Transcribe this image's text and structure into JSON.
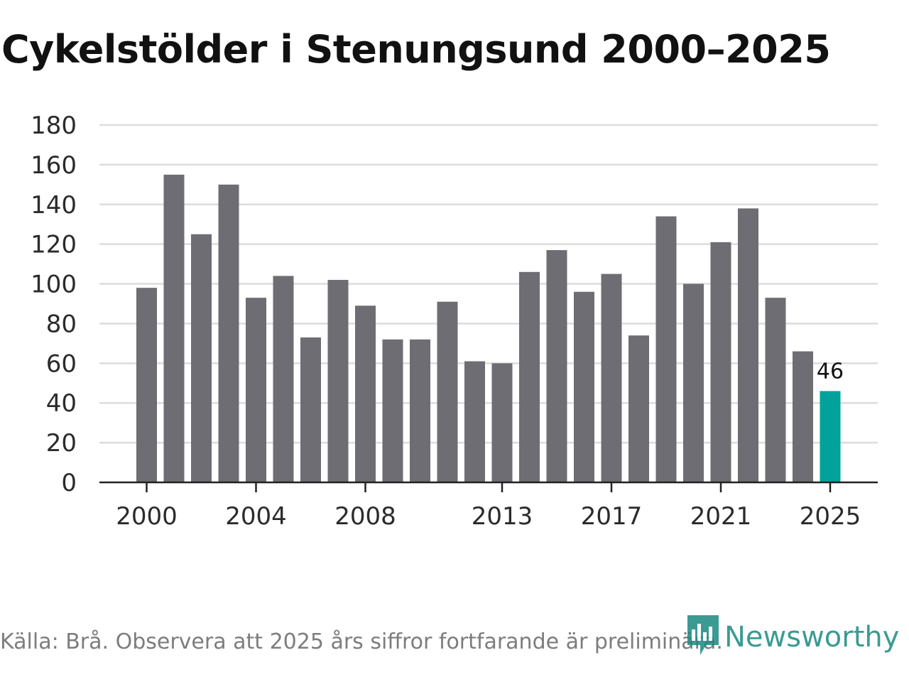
{
  "title": "Cykelstölder i Stenungsund 2000–2025",
  "footer": "Källa: Brå. Observera att 2025 års siffror fortfarande är preliminära.",
  "brand": {
    "name": "Newsworthy",
    "icon": "newsworthy-logo-icon"
  },
  "colors": {
    "bar": "#6e6d73",
    "highlight": "#00a29a",
    "grid": "#dcdcdc",
    "axis": "#222222",
    "brand": "#1a8a80"
  },
  "chart_data": {
    "type": "bar",
    "title": "Cykelstölder i Stenungsund 2000–2025",
    "xlabel": "",
    "ylabel": "",
    "categories": [
      2000,
      2001,
      2002,
      2003,
      2004,
      2005,
      2006,
      2007,
      2008,
      2009,
      2010,
      2011,
      2012,
      2013,
      2014,
      2015,
      2016,
      2017,
      2018,
      2019,
      2020,
      2021,
      2022,
      2023,
      2024,
      2025
    ],
    "values": [
      98,
      155,
      125,
      150,
      93,
      104,
      73,
      102,
      89,
      72,
      72,
      91,
      61,
      60,
      106,
      117,
      96,
      105,
      74,
      134,
      100,
      121,
      138,
      93,
      66,
      46
    ],
    "ylim": [
      0,
      180
    ],
    "yticks": [
      0,
      20,
      40,
      60,
      80,
      100,
      120,
      140,
      160,
      180
    ],
    "xticks": [
      2000,
      2004,
      2008,
      2013,
      2017,
      2021,
      2025
    ],
    "highlight": {
      "category": 2025,
      "label": "46"
    },
    "grid": true,
    "legend": "none"
  }
}
